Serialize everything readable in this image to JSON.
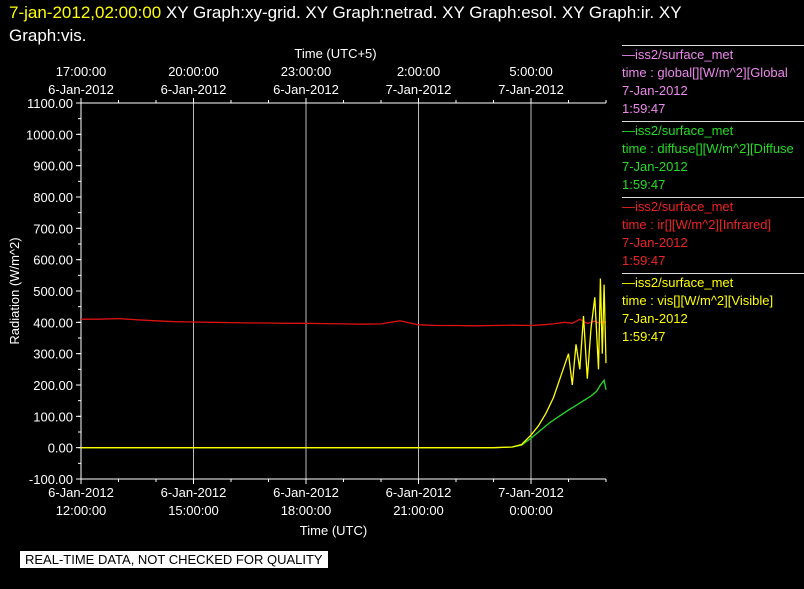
{
  "header": {
    "date": "7-jan-2012,02:00:00",
    "line1_rest": " XY Graph:xy-grid.  XY Graph:netrad.  XY Graph:esol.  XY Graph:ir.  XY",
    "line2": "Graph:vis."
  },
  "chart_data": {
    "type": "line",
    "top_axis": {
      "label": "Time (UTC+5)",
      "ticks": [
        {
          "time": "17:00:00",
          "date": "6-Jan-2012"
        },
        {
          "time": "20:00:00",
          "date": "6-Jan-2012"
        },
        {
          "time": "23:00:00",
          "date": "6-Jan-2012"
        },
        {
          "time": "2:00:00",
          "date": "7-Jan-2012"
        },
        {
          "time": "5:00:00",
          "date": "7-Jan-2012"
        }
      ]
    },
    "x_axis": {
      "label": "Time (UTC)",
      "ticks": [
        {
          "date": "6-Jan-2012",
          "time": "12:00:00",
          "hours": 0
        },
        {
          "date": "6-Jan-2012",
          "time": "15:00:00",
          "hours": 3
        },
        {
          "date": "6-Jan-2012",
          "time": "18:00:00",
          "hours": 6
        },
        {
          "date": "6-Jan-2012",
          "time": "21:00:00",
          "hours": 9
        },
        {
          "date": "7-Jan-2012",
          "time": "0:00:00",
          "hours": 12
        }
      ],
      "range_hours": [
        0,
        14
      ]
    },
    "y_axis": {
      "label": "Radiation (W/m^2)",
      "range": [
        -100,
        1100
      ],
      "ticks": [
        "-100.00",
        "0.00",
        "100.00",
        "200.00",
        "300.00",
        "400.00",
        "500.00",
        "600.00",
        "700.00",
        "800.00",
        "900.00",
        "1000.00",
        "1100.00"
      ]
    },
    "grid": "vertical",
    "series": [
      {
        "name": "ir",
        "color": "#dd1111",
        "x": [
          0,
          0.5,
          1,
          1.5,
          2,
          2.5,
          3,
          3.5,
          4,
          4.5,
          5,
          5.5,
          6,
          6.5,
          7,
          7.5,
          8,
          8.5,
          9,
          9.5,
          10,
          10.5,
          11,
          11.5,
          12,
          12.3,
          12.6,
          12.9,
          13.1,
          13.3,
          13.5,
          13.7,
          13.8,
          13.9,
          14
        ],
        "y": [
          410,
          410,
          412,
          408,
          405,
          402,
          401,
          400,
          399,
          398,
          398,
          397,
          397,
          396,
          395,
          394,
          395,
          405,
          392,
          390,
          390,
          389,
          390,
          391,
          390,
          392,
          395,
          400,
          397,
          410,
          396,
          404,
          398,
          402,
          400
        ]
      },
      {
        "name": "diffuse",
        "color": "#22dd22",
        "x": [
          0,
          1,
          2,
          3,
          4,
          5,
          6,
          7,
          8,
          9,
          10,
          11,
          11.5,
          11.75,
          12,
          12.25,
          12.5,
          12.75,
          13,
          13.2,
          13.4,
          13.6,
          13.75,
          13.85,
          13.95,
          14
        ],
        "y": [
          0,
          0,
          0,
          0,
          0,
          0,
          0,
          0,
          0,
          0,
          0,
          0,
          2,
          8,
          30,
          55,
          80,
          100,
          120,
          135,
          150,
          165,
          180,
          200,
          215,
          185
        ]
      },
      {
        "name": "vis",
        "color": "#ffff00",
        "x": [
          0,
          1,
          2,
          3,
          4,
          5,
          6,
          7,
          8,
          9,
          10,
          11,
          11.5,
          11.75,
          12,
          12.2,
          12.4,
          12.6,
          12.8,
          13.0,
          13.1,
          13.2,
          13.3,
          13.4,
          13.5,
          13.6,
          13.7,
          13.8,
          13.85,
          13.9,
          13.95,
          14
        ],
        "y": [
          0,
          0,
          0,
          0,
          0,
          0,
          0,
          0,
          0,
          0,
          0,
          0,
          2,
          10,
          40,
          70,
          110,
          160,
          230,
          300,
          200,
          330,
          250,
          420,
          220,
          380,
          480,
          250,
          540,
          300,
          520,
          270
        ]
      }
    ]
  },
  "legend": [
    {
      "source": "—iss2/surface_met",
      "variable": "time : global[][W/m^2][Global",
      "date": "7-Jan-2012",
      "time": "1:59:47",
      "color": "#ee88ee"
    },
    {
      "source": "—iss2/surface_met",
      "variable": "time : diffuse[][W/m^2][Diffuse",
      "date": "7-Jan-2012",
      "time": "1:59:47",
      "color": "#22dd22"
    },
    {
      "source": "—iss2/surface_met",
      "variable": "time : ir[][W/m^2][Infrared]",
      "date": "7-Jan-2012",
      "time": "1:59:47",
      "color": "#ee2222"
    },
    {
      "source": "—iss2/surface_met",
      "variable": "time : vis[][W/m^2][Visible]",
      "date": "7-Jan-2012",
      "time": "1:59:47",
      "color": "#ffff00"
    }
  ],
  "footer": "REAL-TIME DATA, NOT CHECKED FOR QUALITY"
}
